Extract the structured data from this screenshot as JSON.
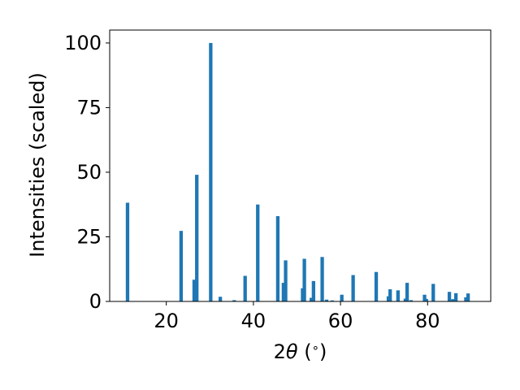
{
  "chart_data": {
    "type": "bar",
    "xlabel_parts": [
      "2",
      "θ",
      " (",
      "∘",
      ")"
    ],
    "ylabel": "Intensities (scaled)",
    "xlim": [
      7,
      94.5
    ],
    "ylim": [
      0,
      105
    ],
    "xticks": [
      20,
      40,
      60,
      80
    ],
    "yticks": [
      0,
      25,
      50,
      75,
      100
    ],
    "grid": false,
    "bar_color": "#1f77b4",
    "bar_width": 0.8,
    "x": [
      11.1,
      23.4,
      26.4,
      27.0,
      30.2,
      32.4,
      35.6,
      38.1,
      41.0,
      45.6,
      46.9,
      47.4,
      51.3,
      51.7,
      53.3,
      53.8,
      55.8,
      56.8,
      58.1,
      60.3,
      62.9,
      68.2,
      71.0,
      71.4,
      73.2,
      74.9,
      75.3,
      76.2,
      79.3,
      79.7,
      81.3,
      85.0,
      85.8,
      86.5,
      88.8,
      89.3
    ],
    "values": [
      38.2,
      27.3,
      8.4,
      49.0,
      100.0,
      1.8,
      0.5,
      9.9,
      37.5,
      33.0,
      7.2,
      15.9,
      5.1,
      16.5,
      1.4,
      7.9,
      17.2,
      0.7,
      0.4,
      2.6,
      10.2,
      11.4,
      2.0,
      4.7,
      4.3,
      1.1,
      7.2,
      0.5,
      2.6,
      1.0,
      6.8,
      3.7,
      0.9,
      3.2,
      1.6,
      3.1
    ]
  }
}
